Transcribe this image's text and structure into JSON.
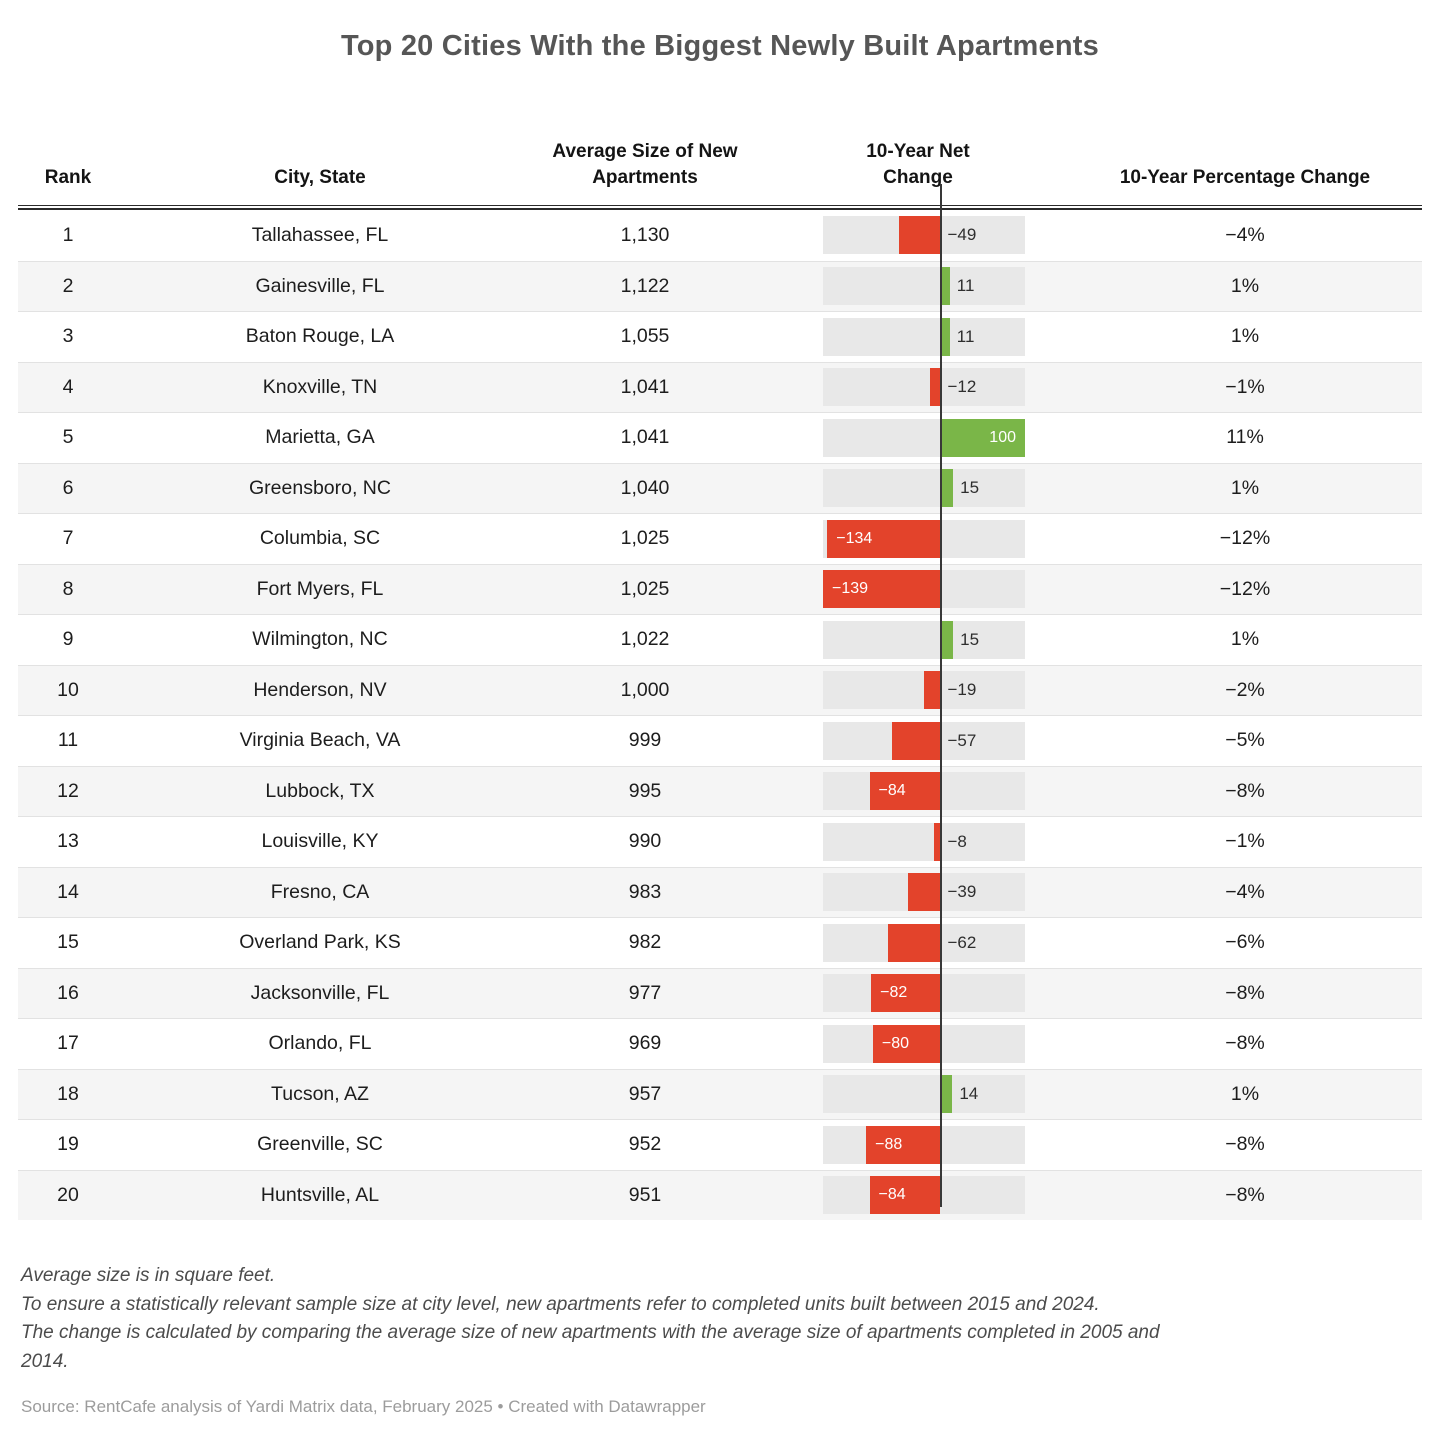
{
  "title": "Top 20 Cities With the Biggest Newly Built Apartments",
  "chart_data": {
    "type": "table",
    "bar_column": "10-Year Net Change",
    "axis_range": [
      -139,
      100
    ],
    "colors": {
      "negative": "#e3432b",
      "positive": "#7ab648",
      "track": "#e8e8e8"
    },
    "columns": [
      {
        "label": "Rank"
      },
      {
        "label": "City, State"
      },
      {
        "label": "Average Size of New\nApartments"
      },
      {
        "label": "10-Year Net\nChange"
      },
      {
        "label": "10-Year Percentage Change"
      }
    ],
    "rows": [
      {
        "rank": "1",
        "city": "Tallahassee, FL",
        "size": "1,130",
        "net": -49,
        "net_label": "−49",
        "pct": "−4%"
      },
      {
        "rank": "2",
        "city": "Gainesville, FL",
        "size": "1,122",
        "net": 11,
        "net_label": "11",
        "pct": "1%"
      },
      {
        "rank": "3",
        "city": "Baton Rouge, LA",
        "size": "1,055",
        "net": 11,
        "net_label": "11",
        "pct": "1%"
      },
      {
        "rank": "4",
        "city": "Knoxville, TN",
        "size": "1,041",
        "net": -12,
        "net_label": "−12",
        "pct": "−1%"
      },
      {
        "rank": "5",
        "city": "Marietta, GA",
        "size": "1,041",
        "net": 100,
        "net_label": "100",
        "pct": "11%"
      },
      {
        "rank": "6",
        "city": "Greensboro, NC",
        "size": "1,040",
        "net": 15,
        "net_label": "15",
        "pct": "1%"
      },
      {
        "rank": "7",
        "city": "Columbia, SC",
        "size": "1,025",
        "net": -134,
        "net_label": "−134",
        "pct": "−12%"
      },
      {
        "rank": "8",
        "city": "Fort Myers, FL",
        "size": "1,025",
        "net": -139,
        "net_label": "−139",
        "pct": "−12%"
      },
      {
        "rank": "9",
        "city": "Wilmington, NC",
        "size": "1,022",
        "net": 15,
        "net_label": "15",
        "pct": "1%"
      },
      {
        "rank": "10",
        "city": "Henderson, NV",
        "size": "1,000",
        "net": -19,
        "net_label": "−19",
        "pct": "−2%"
      },
      {
        "rank": "11",
        "city": "Virginia Beach, VA",
        "size": "999",
        "net": -57,
        "net_label": "−57",
        "pct": "−5%"
      },
      {
        "rank": "12",
        "city": "Lubbock, TX",
        "size": "995",
        "net": -84,
        "net_label": "−84",
        "pct": "−8%"
      },
      {
        "rank": "13",
        "city": "Louisville, KY",
        "size": "990",
        "net": -8,
        "net_label": "−8",
        "pct": "−1%"
      },
      {
        "rank": "14",
        "city": "Fresno, CA",
        "size": "983",
        "net": -39,
        "net_label": "−39",
        "pct": "−4%"
      },
      {
        "rank": "15",
        "city": "Overland Park, KS",
        "size": "982",
        "net": -62,
        "net_label": "−62",
        "pct": "−6%"
      },
      {
        "rank": "16",
        "city": "Jacksonville, FL",
        "size": "977",
        "net": -82,
        "net_label": "−82",
        "pct": "−8%"
      },
      {
        "rank": "17",
        "city": "Orlando, FL",
        "size": "969",
        "net": -80,
        "net_label": "−80",
        "pct": "−8%"
      },
      {
        "rank": "18",
        "city": "Tucson, AZ",
        "size": "957",
        "net": 14,
        "net_label": "14",
        "pct": "1%"
      },
      {
        "rank": "19",
        "city": "Greenville, SC",
        "size": "952",
        "net": -88,
        "net_label": "−88",
        "pct": "−8%"
      },
      {
        "rank": "20",
        "city": "Huntsville, AL",
        "size": "951",
        "net": -84,
        "net_label": "−84",
        "pct": "−8%"
      }
    ]
  },
  "notes": [
    "Average size is in square feet.",
    "To ensure a statistically relevant sample size at city level, new apartments refer to completed units built between 2015 and 2024.",
    "The change is calculated by comparing the average size of new apartments with the average size of apartments completed in 2005 and\n2014."
  ],
  "source": "Source: RentCafe analysis of Yardi Matrix data, February 2025 • Created with Datawrapper"
}
